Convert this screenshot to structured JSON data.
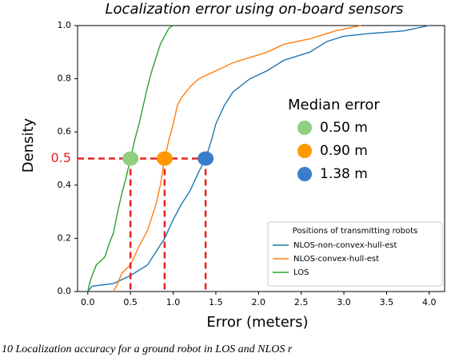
{
  "chart_data": {
    "type": "line",
    "title": "Localization error using on-board sensors",
    "x_label": "Error (meters)",
    "y_label": "Density",
    "caption": "10    Localization accuracy for a ground robot in LOS and NLOS r",
    "xlim": [
      -0.12,
      4.18
    ],
    "ylim": [
      0,
      1
    ],
    "xticks": [
      {
        "value": 0,
        "label": "0.0"
      },
      {
        "value": 0.5,
        "label": "0.5"
      },
      {
        "value": 1,
        "label": "1.0"
      },
      {
        "value": 1.5,
        "label": "1.5"
      },
      {
        "value": 2,
        "label": "2.0"
      },
      {
        "value": 2.5,
        "label": "2.5"
      },
      {
        "value": 3,
        "label": "3.0"
      },
      {
        "value": 3.5,
        "label": "3.5"
      },
      {
        "value": 4,
        "label": "4.0"
      }
    ],
    "yticks": [
      {
        "value": 0,
        "label": "0.0"
      },
      {
        "value": 0.2,
        "label": "0.2"
      },
      {
        "value": 0.4,
        "label": "0.4"
      },
      {
        "value": 0.6,
        "label": "0.6"
      },
      {
        "value": 0.8,
        "label": "0.8"
      },
      {
        "value": 1,
        "label": "1.0"
      }
    ],
    "legend_title": "Positions of transmitting robots",
    "legend_position": "lower right",
    "series": [
      {
        "name": "NLOS-non-convex-hull-est",
        "color": "#1f77b4",
        "x": [
          0,
          0.05,
          0.3,
          0.5,
          0.7,
          0.8,
          0.9,
          1.0,
          1.1,
          1.2,
          1.3,
          1.38,
          1.45,
          1.5,
          1.6,
          1.7,
          1.9,
          2.1,
          2.3,
          2.6,
          2.8,
          3.0,
          3.3,
          3.7,
          4.0
        ],
        "values": [
          0,
          0.02,
          0.03,
          0.06,
          0.1,
          0.15,
          0.2,
          0.27,
          0.33,
          0.38,
          0.45,
          0.5,
          0.57,
          0.63,
          0.7,
          0.75,
          0.8,
          0.83,
          0.87,
          0.9,
          0.94,
          0.96,
          0.97,
          0.98,
          1.0
        ]
      },
      {
        "name": "NLOS-convex-hull-est",
        "color": "#ff7f0e",
        "x": [
          0.3,
          0.35,
          0.4,
          0.5,
          0.6,
          0.7,
          0.75,
          0.8,
          0.85,
          0.9,
          0.95,
          1.0,
          1.05,
          1.1,
          1.2,
          1.3,
          1.5,
          1.7,
          1.9,
          2.1,
          2.3,
          2.6,
          2.9,
          3.2
        ],
        "values": [
          0,
          0.03,
          0.07,
          0.1,
          0.17,
          0.23,
          0.28,
          0.33,
          0.4,
          0.5,
          0.57,
          0.63,
          0.7,
          0.73,
          0.77,
          0.8,
          0.83,
          0.86,
          0.88,
          0.9,
          0.93,
          0.95,
          0.98,
          1.0
        ]
      },
      {
        "name": "LOS",
        "color": "#2ca02c",
        "x": [
          0,
          0.02,
          0.05,
          0.1,
          0.2,
          0.25,
          0.3,
          0.35,
          0.4,
          0.45,
          0.5,
          0.55,
          0.6,
          0.65,
          0.7,
          0.75,
          0.8,
          0.85,
          0.9,
          0.95,
          1.0
        ],
        "values": [
          0,
          0.03,
          0.06,
          0.1,
          0.13,
          0.18,
          0.22,
          0.3,
          0.37,
          0.43,
          0.5,
          0.57,
          0.63,
          0.7,
          0.77,
          0.83,
          0.88,
          0.93,
          0.96,
          0.99,
          1.0
        ]
      }
    ],
    "median_title": "Median error",
    "medians": [
      {
        "value": 0.5,
        "label": "0.50 m",
        "color": "#8fcf7f"
      },
      {
        "value": 0.9,
        "label": "0.90 m",
        "color": "#ff9900"
      },
      {
        "value": 1.38,
        "label": "1.38 m",
        "color": "#3a7dc9"
      }
    ],
    "reference": {
      "value": 0.5,
      "label": "0.5",
      "color": "#e8211e"
    }
  }
}
